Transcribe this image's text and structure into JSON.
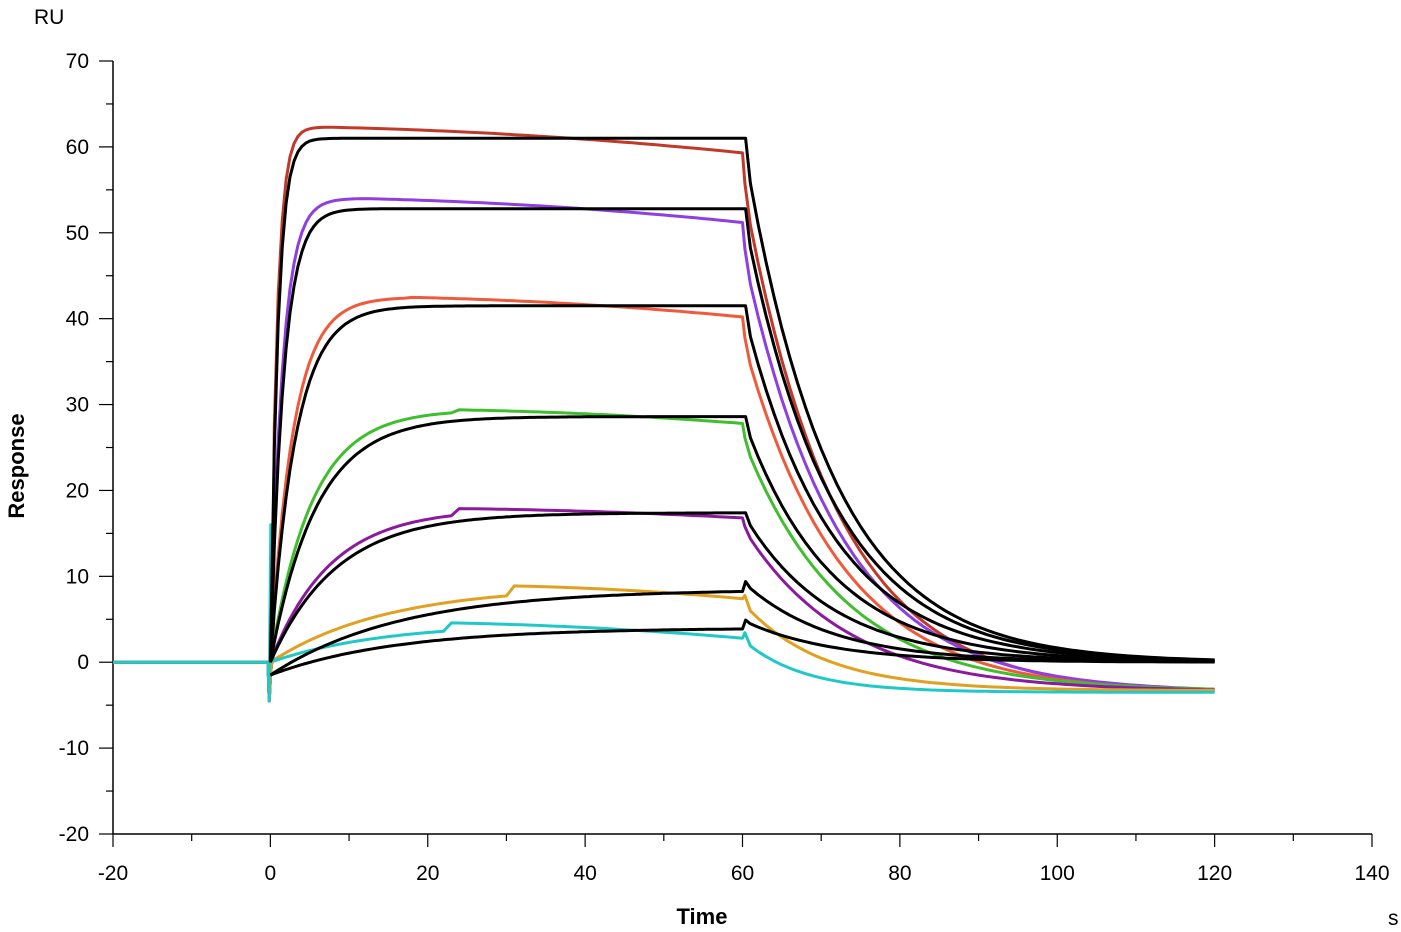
{
  "chart_data": {
    "type": "line",
    "title": "",
    "xlabel": "Time",
    "ylabel": "Response",
    "x_unit": "s",
    "y_unit": "RU",
    "xlim": [
      -20,
      140
    ],
    "ylim": [
      -20,
      70
    ],
    "x_ticks": [
      -20,
      0,
      20,
      40,
      60,
      80,
      100,
      120,
      140
    ],
    "y_ticks": [
      -20,
      -10,
      0,
      10,
      20,
      30,
      40,
      50,
      60,
      70
    ],
    "grid": false,
    "legend": "none",
    "series": [
      {
        "color": "#c0392b",
        "peak": 62.3,
        "t_peak": 7,
        "end_assoc": 59.3,
        "fit_plateau": 61.0,
        "end_value": -3.7
      },
      {
        "color": "#8e3fe0",
        "peak": 54.0,
        "t_peak": 11,
        "end_assoc": 51.2,
        "fit_plateau": 52.8,
        "end_value": -3.5
      },
      {
        "color": "#f05a3c",
        "peak": 42.5,
        "t_peak": 17,
        "end_assoc": 40.2,
        "fit_plateau": 41.5,
        "end_value": -3.6
      },
      {
        "color": "#3fbf2e",
        "peak": 29.4,
        "t_peak": 23,
        "end_assoc": 27.8,
        "fit_plateau": 28.6,
        "end_value": -3.4
      },
      {
        "color": "#8b1a9c",
        "peak": 17.9,
        "t_peak": 23,
        "end_assoc": 16.8,
        "fit_plateau": 17.4,
        "end_value": -3.4
      },
      {
        "color": "#e0a020",
        "peak": 8.9,
        "t_peak": 30,
        "end_assoc": 7.4,
        "fit_plateau": 8.5,
        "end_value": -3.3
      },
      {
        "color": "#20c8c8",
        "peak": 4.6,
        "t_peak": 22,
        "end_assoc": 2.8,
        "fit_plateau": 4.0,
        "end_value": -3.5
      }
    ],
    "fit_color": "#000000",
    "injection_start": 0,
    "injection_end": 60,
    "data_end": 120
  }
}
